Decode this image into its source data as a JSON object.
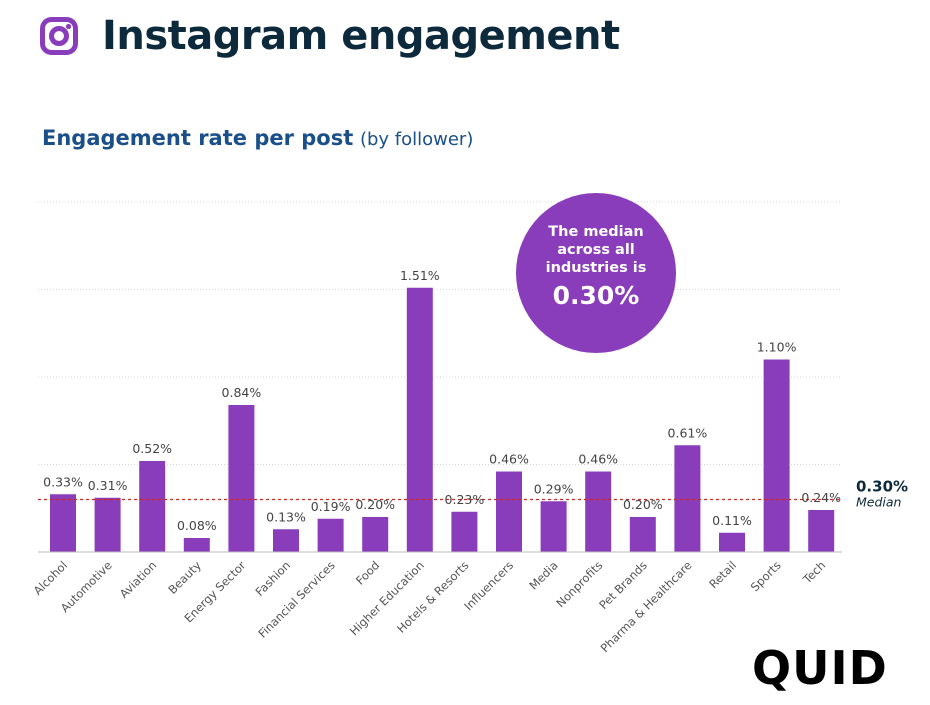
{
  "header": {
    "title": "Instagram engagement",
    "icon": "instagram-icon"
  },
  "subtitle": {
    "main": "Engagement rate per post",
    "paren": "(by follower)"
  },
  "median_bubble": {
    "text": "The median across all industries is",
    "value": "0.30%"
  },
  "median_line": {
    "value_label": "0.30%",
    "label": "Median"
  },
  "logo": "QUID",
  "colors": {
    "bar": "#8a3dbb",
    "title": "#0c2a3c",
    "subtitle": "#1b4f8a",
    "median_line": "#c62828",
    "grid": "#d5d5d5"
  },
  "chart_data": {
    "type": "bar",
    "title": "Engagement rate per post (by follower)",
    "xlabel": "",
    "ylabel": "",
    "ylim": [
      0,
      2.0
    ],
    "grid": true,
    "categories": [
      "Alcohol",
      "Automotive",
      "Aviation",
      "Beauty",
      "Energy Sector",
      "Fashion",
      "Financial Services",
      "Food",
      "Higher Education",
      "Hotels & Resorts",
      "Influencers",
      "Media",
      "Nonprofits",
      "Pet Brands",
      "Pharma & Healthcare",
      "Retail",
      "Sports",
      "Tech"
    ],
    "values": [
      0.33,
      0.31,
      0.52,
      0.08,
      0.84,
      0.13,
      0.19,
      0.2,
      1.51,
      0.23,
      0.46,
      0.29,
      0.46,
      0.2,
      0.61,
      0.11,
      1.1,
      0.24
    ],
    "data_labels": [
      "0.33%",
      "0.31%",
      "0.52%",
      "0.08%",
      "0.84%",
      "0.13%",
      "0.19%",
      "0.20%",
      "1.51%",
      "0.23%",
      "0.46%",
      "0.29%",
      "0.46%",
      "0.20%",
      "0.61%",
      "0.11%",
      "1.10%",
      "0.24%"
    ],
    "reference_line": {
      "value": 0.3,
      "label": "Median"
    }
  }
}
